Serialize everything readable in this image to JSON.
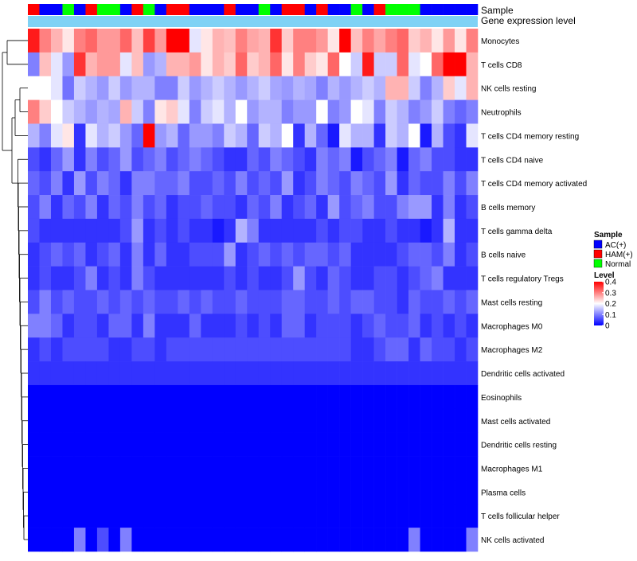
{
  "chart_data": {
    "type": "heatmap",
    "annotation_titles": [
      "Sample",
      "Gene expression level"
    ],
    "legend_sample_title": "Sample",
    "legend_sample_items": [
      {
        "label": "AC(+)",
        "color": "#0000ff"
      },
      {
        "label": "HAM(+)",
        "color": "#ff0000"
      },
      {
        "label": "Normal",
        "color": "#00ff00"
      }
    ],
    "legend_level_title": "Level",
    "level_ticks": [
      0.4,
      0.3,
      0.2,
      0.1,
      0
    ],
    "color_scale": {
      "min": 0,
      "mid": 0.2,
      "max": 0.4,
      "low": "#0000ff",
      "mid_color": "#ffffff",
      "high": "#ff0000"
    },
    "expression_bar_color": "#7fd2f5",
    "samples": [
      "HAM(+)",
      "AC(+)",
      "AC(+)",
      "Normal",
      "AC(+)",
      "HAM(+)",
      "Normal",
      "Normal",
      "AC(+)",
      "HAM(+)",
      "Normal",
      "AC(+)",
      "HAM(+)",
      "HAM(+)",
      "AC(+)",
      "AC(+)",
      "AC(+)",
      "HAM(+)",
      "AC(+)",
      "AC(+)",
      "Normal",
      "AC(+)",
      "HAM(+)",
      "HAM(+)",
      "AC(+)",
      "HAM(+)",
      "AC(+)",
      "AC(+)",
      "Normal",
      "AC(+)",
      "HAM(+)",
      "Normal",
      "Normal",
      "Normal",
      "AC(+)",
      "AC(+)",
      "AC(+)",
      "AC(+)",
      "AC(+)"
    ],
    "rows": [
      {
        "label": "Monocytes",
        "values": [
          0.38,
          0.3,
          0.26,
          0.22,
          0.3,
          0.32,
          0.28,
          0.28,
          0.32,
          0.25,
          0.35,
          0.28,
          0.4,
          0.4,
          0.18,
          0.22,
          0.26,
          0.25,
          0.3,
          0.27,
          0.26,
          0.36,
          0.24,
          0.3,
          0.3,
          0.28,
          0.22,
          0.4,
          0.25,
          0.3,
          0.27,
          0.3,
          0.32,
          0.24,
          0.26,
          0.22,
          0.28,
          0.22,
          0.3
        ]
      },
      {
        "label": "T cells CD8",
        "values": [
          0.1,
          0.25,
          0.18,
          0.12,
          0.36,
          0.26,
          0.28,
          0.28,
          0.18,
          0.25,
          0.12,
          0.14,
          0.26,
          0.26,
          0.28,
          0.22,
          0.26,
          0.24,
          0.32,
          0.24,
          0.26,
          0.32,
          0.22,
          0.3,
          0.24,
          0.22,
          0.32,
          0.2,
          0.16,
          0.38,
          0.16,
          0.16,
          0.32,
          0.18,
          0.2,
          0.32,
          0.4,
          0.4,
          0.26
        ]
      },
      {
        "label": "NK cells resting",
        "values": [
          0.2,
          0.2,
          0.18,
          0.09,
          0.16,
          0.14,
          0.12,
          0.16,
          0.12,
          0.14,
          0.14,
          0.1,
          0.1,
          0.16,
          0.12,
          0.14,
          0.16,
          0.14,
          0.12,
          0.14,
          0.16,
          0.13,
          0.12,
          0.14,
          0.13,
          0.1,
          0.14,
          0.12,
          0.14,
          0.16,
          0.14,
          0.26,
          0.26,
          0.16,
          0.1,
          0.14,
          0.24,
          0.18,
          0.26
        ]
      },
      {
        "label": "Neutrophils",
        "values": [
          0.3,
          0.24,
          0.2,
          0.16,
          0.14,
          0.12,
          0.14,
          0.13,
          0.26,
          0.16,
          0.1,
          0.22,
          0.24,
          0.18,
          0.1,
          0.16,
          0.18,
          0.14,
          0.2,
          0.12,
          0.14,
          0.14,
          0.1,
          0.12,
          0.12,
          0.2,
          0.1,
          0.12,
          0.2,
          0.18,
          0.1,
          0.16,
          0.14,
          0.1,
          0.12,
          0.16,
          0.1,
          0.08,
          0.1
        ]
      },
      {
        "label": "T cells CD4 memory resting",
        "values": [
          0.14,
          0.1,
          0.18,
          0.22,
          0.04,
          0.18,
          0.14,
          0.16,
          0.12,
          0.08,
          0.4,
          0.12,
          0.14,
          0.08,
          0.12,
          0.12,
          0.1,
          0.16,
          0.14,
          0.08,
          0.16,
          0.14,
          0.2,
          0.04,
          0.14,
          0.08,
          0.02,
          0.18,
          0.14,
          0.14,
          0.04,
          0.16,
          0.14,
          0.2,
          0.02,
          0.14,
          0.06,
          0.04,
          0.18
        ]
      },
      {
        "label": "T cells CD4 naive",
        "values": [
          0.06,
          0.04,
          0.08,
          0.12,
          0.04,
          0.1,
          0.06,
          0.08,
          0.12,
          0.06,
          0.08,
          0.1,
          0.06,
          0.08,
          0.1,
          0.08,
          0.06,
          0.04,
          0.04,
          0.08,
          0.06,
          0.1,
          0.08,
          0.06,
          0.04,
          0.1,
          0.08,
          0.1,
          0.02,
          0.06,
          0.08,
          0.1,
          0.02,
          0.08,
          0.1,
          0.06,
          0.06,
          0.04,
          0.04
        ]
      },
      {
        "label": "T cells CD4 memory activated",
        "values": [
          0.08,
          0.06,
          0.1,
          0.04,
          0.12,
          0.06,
          0.1,
          0.08,
          0.04,
          0.1,
          0.1,
          0.08,
          0.08,
          0.1,
          0.06,
          0.06,
          0.08,
          0.06,
          0.1,
          0.06,
          0.08,
          0.06,
          0.12,
          0.04,
          0.06,
          0.1,
          0.08,
          0.06,
          0.1,
          0.08,
          0.06,
          0.12,
          0.04,
          0.08,
          0.06,
          0.06,
          0.1,
          0.06,
          0.1
        ]
      },
      {
        "label": "B cells memory",
        "values": [
          0.06,
          0.1,
          0.04,
          0.08,
          0.06,
          0.1,
          0.04,
          0.08,
          0.06,
          0.1,
          0.06,
          0.08,
          0.04,
          0.06,
          0.06,
          0.08,
          0.06,
          0.06,
          0.04,
          0.08,
          0.06,
          0.1,
          0.04,
          0.06,
          0.08,
          0.04,
          0.12,
          0.06,
          0.08,
          0.1,
          0.06,
          0.06,
          0.1,
          0.12,
          0.12,
          0.04,
          0.1,
          0.04,
          0.06
        ]
      },
      {
        "label": "T cells gamma delta",
        "values": [
          0.06,
          0.04,
          0.04,
          0.04,
          0.04,
          0.04,
          0.04,
          0.04,
          0.06,
          0.12,
          0.04,
          0.06,
          0.04,
          0.06,
          0.04,
          0.04,
          0.02,
          0.04,
          0.14,
          0.1,
          0.04,
          0.04,
          0.04,
          0.04,
          0.04,
          0.06,
          0.04,
          0.06,
          0.06,
          0.04,
          0.04,
          0.06,
          0.04,
          0.04,
          0.02,
          0.04,
          0.14,
          0.04,
          0.04
        ]
      },
      {
        "label": "B cells naive",
        "values": [
          0.04,
          0.06,
          0.08,
          0.06,
          0.08,
          0.04,
          0.06,
          0.08,
          0.04,
          0.1,
          0.04,
          0.08,
          0.04,
          0.04,
          0.06,
          0.06,
          0.06,
          0.12,
          0.04,
          0.06,
          0.08,
          0.06,
          0.08,
          0.06,
          0.08,
          0.08,
          0.06,
          0.08,
          0.04,
          0.04,
          0.04,
          0.04,
          0.06,
          0.08,
          0.08,
          0.06,
          0.1,
          0.04,
          0.06
        ]
      },
      {
        "label": "T cells regulatory  Tregs",
        "values": [
          0.04,
          0.06,
          0.04,
          0.04,
          0.06,
          0.1,
          0.04,
          0.06,
          0.04,
          0.1,
          0.06,
          0.04,
          0.04,
          0.04,
          0.04,
          0.04,
          0.04,
          0.06,
          0.04,
          0.06,
          0.04,
          0.04,
          0.06,
          0.12,
          0.06,
          0.04,
          0.08,
          0.06,
          0.04,
          0.04,
          0.06,
          0.06,
          0.04,
          0.06,
          0.08,
          0.1,
          0.04,
          0.04,
          0.04
        ]
      },
      {
        "label": "Mast cells resting",
        "values": [
          0.06,
          0.1,
          0.06,
          0.08,
          0.06,
          0.06,
          0.08,
          0.06,
          0.08,
          0.06,
          0.08,
          0.06,
          0.06,
          0.08,
          0.06,
          0.08,
          0.06,
          0.06,
          0.08,
          0.06,
          0.06,
          0.06,
          0.08,
          0.08,
          0.06,
          0.06,
          0.08,
          0.06,
          0.08,
          0.08,
          0.06,
          0.06,
          0.04,
          0.08,
          0.06,
          0.06,
          0.08,
          0.06,
          0.08
        ]
      },
      {
        "label": "Macrophages M0",
        "values": [
          0.1,
          0.1,
          0.08,
          0.04,
          0.06,
          0.06,
          0.04,
          0.08,
          0.08,
          0.04,
          0.1,
          0.04,
          0.04,
          0.04,
          0.08,
          0.04,
          0.04,
          0.04,
          0.06,
          0.04,
          0.06,
          0.04,
          0.08,
          0.08,
          0.04,
          0.06,
          0.06,
          0.06,
          0.04,
          0.06,
          0.08,
          0.06,
          0.06,
          0.08,
          0.04,
          0.06,
          0.04,
          0.06,
          0.04
        ]
      },
      {
        "label": "Macrophages M2",
        "values": [
          0.04,
          0.06,
          0.04,
          0.06,
          0.06,
          0.06,
          0.06,
          0.04,
          0.04,
          0.06,
          0.06,
          0.04,
          0.06,
          0.06,
          0.06,
          0.06,
          0.06,
          0.06,
          0.06,
          0.06,
          0.06,
          0.06,
          0.06,
          0.06,
          0.06,
          0.06,
          0.06,
          0.06,
          0.04,
          0.04,
          0.06,
          0.08,
          0.08,
          0.04,
          0.08,
          0.06,
          0.06,
          0.04,
          0.06
        ]
      },
      {
        "label": "Dendritic cells activated",
        "values": [
          0.04,
          0.04,
          0.04,
          0.04,
          0.04,
          0.04,
          0.04,
          0.04,
          0.04,
          0.04,
          0.04,
          0.04,
          0.04,
          0.04,
          0.04,
          0.04,
          0.04,
          0.04,
          0.04,
          0.04,
          0.04,
          0.04,
          0.04,
          0.04,
          0.04,
          0.04,
          0.04,
          0.04,
          0.04,
          0.04,
          0.04,
          0.04,
          0.04,
          0.04,
          0.04,
          0.04,
          0.04,
          0.04,
          0.04
        ]
      },
      {
        "label": "Eosinophils",
        "values": [
          0,
          0,
          0,
          0,
          0,
          0,
          0,
          0,
          0,
          0,
          0,
          0,
          0,
          0,
          0,
          0,
          0,
          0,
          0,
          0,
          0,
          0,
          0,
          0,
          0,
          0,
          0,
          0,
          0,
          0,
          0,
          0,
          0,
          0,
          0,
          0,
          0,
          0,
          0
        ]
      },
      {
        "label": "Mast cells activated",
        "values": [
          0,
          0,
          0,
          0,
          0,
          0,
          0,
          0,
          0,
          0,
          0,
          0,
          0,
          0,
          0,
          0,
          0,
          0,
          0,
          0,
          0,
          0,
          0,
          0,
          0,
          0,
          0,
          0,
          0,
          0,
          0,
          0,
          0,
          0,
          0,
          0,
          0,
          0,
          0
        ]
      },
      {
        "label": "Dendritic cells resting",
        "values": [
          0,
          0,
          0,
          0,
          0,
          0,
          0,
          0,
          0,
          0,
          0,
          0,
          0,
          0,
          0,
          0,
          0,
          0,
          0,
          0,
          0,
          0,
          0,
          0,
          0,
          0,
          0,
          0,
          0,
          0,
          0,
          0,
          0,
          0,
          0,
          0,
          0,
          0,
          0
        ]
      },
      {
        "label": "Macrophages M1",
        "values": [
          0,
          0,
          0,
          0,
          0,
          0,
          0,
          0,
          0,
          0,
          0,
          0,
          0,
          0,
          0,
          0,
          0,
          0,
          0,
          0,
          0,
          0,
          0,
          0,
          0,
          0,
          0,
          0,
          0,
          0,
          0,
          0,
          0,
          0,
          0,
          0,
          0,
          0,
          0
        ]
      },
      {
        "label": "Plasma cells",
        "values": [
          0,
          0,
          0,
          0,
          0,
          0,
          0,
          0,
          0,
          0,
          0,
          0,
          0,
          0,
          0,
          0,
          0,
          0,
          0,
          0,
          0,
          0,
          0,
          0,
          0,
          0,
          0,
          0,
          0,
          0,
          0,
          0,
          0,
          0,
          0,
          0,
          0,
          0,
          0
        ]
      },
      {
        "label": "T cells follicular helper",
        "values": [
          0,
          0,
          0,
          0,
          0,
          0,
          0,
          0,
          0,
          0,
          0,
          0,
          0,
          0,
          0,
          0,
          0,
          0,
          0,
          0,
          0,
          0,
          0,
          0,
          0,
          0,
          0,
          0,
          0,
          0,
          0,
          0,
          0,
          0,
          0,
          0,
          0,
          0,
          0
        ]
      },
      {
        "label": "NK cells activated",
        "values": [
          0,
          0,
          0,
          0,
          0.1,
          0,
          0.06,
          0,
          0.1,
          0,
          0,
          0,
          0,
          0,
          0,
          0,
          0,
          0,
          0,
          0,
          0,
          0,
          0,
          0,
          0,
          0,
          0,
          0,
          0,
          0,
          0,
          0,
          0,
          0.1,
          0,
          0,
          0,
          0,
          0.1
        ]
      }
    ]
  }
}
